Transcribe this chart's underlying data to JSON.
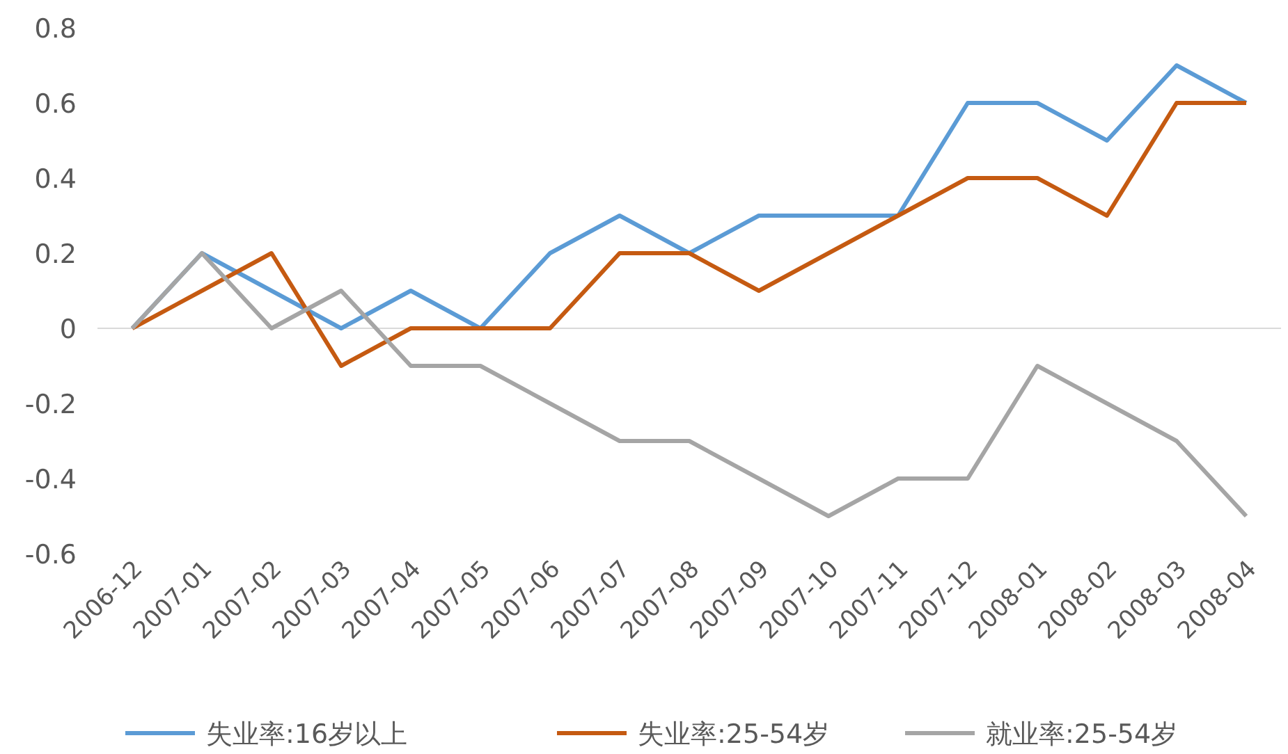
{
  "chart_data": {
    "type": "line",
    "categories": [
      "2006-12",
      "2007-01",
      "2007-02",
      "2007-03",
      "2007-04",
      "2007-05",
      "2007-06",
      "2007-07",
      "2007-08",
      "2007-09",
      "2007-10",
      "2007-11",
      "2007-12",
      "2008-01",
      "2008-02",
      "2008-03",
      "2008-04"
    ],
    "series": [
      {
        "name": "失业率:16岁以上",
        "color": "#5b9bd5",
        "values": [
          0,
          0.2,
          0.1,
          0,
          0.1,
          0,
          0.2,
          0.3,
          0.2,
          0.3,
          0.3,
          0.3,
          0.6,
          0.6,
          0.5,
          0.7,
          0.6
        ]
      },
      {
        "name": "失业率:25-54岁",
        "color": "#c55a11",
        "values": [
          0,
          0.1,
          0.2,
          -0.1,
          0,
          0,
          0,
          0.2,
          0.2,
          0.1,
          0.2,
          0.3,
          0.4,
          0.4,
          0.3,
          0.6,
          0.6
        ]
      },
      {
        "name": "就业率:25-54岁",
        "color": "#a5a5a5",
        "values": [
          0,
          0.2,
          0,
          0.1,
          -0.1,
          -0.1,
          -0.2,
          -0.3,
          -0.3,
          -0.4,
          -0.5,
          -0.4,
          -0.4,
          -0.1,
          -0.2,
          -0.3,
          -0.5
        ]
      }
    ],
    "ylim": [
      -0.6,
      0.8
    ],
    "yticks": [
      -0.6,
      -0.4,
      -0.2,
      0,
      0.2,
      0.4,
      0.6,
      0.8
    ],
    "legend": "bottom",
    "marker": "none",
    "line_style": "solid"
  }
}
